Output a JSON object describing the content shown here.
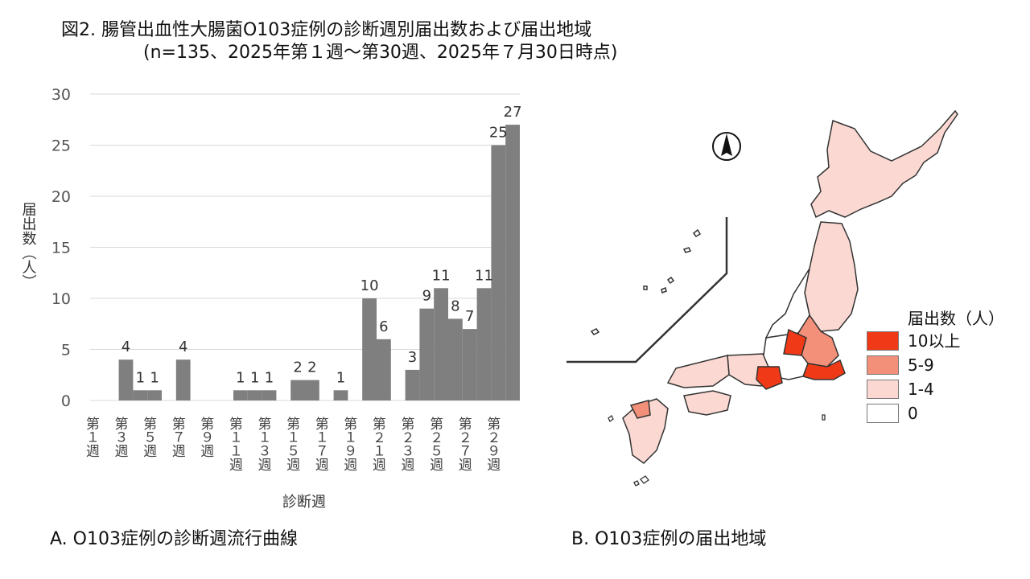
{
  "title": {
    "line1": "図2. 腸管出血性大腸菌O103症例の診断週別届出数および届出地域",
    "line2": "(n=135、2025年第１週～第30週、2025年７月30日時点)"
  },
  "chart_data": {
    "type": "bar",
    "categories": [
      "第１週",
      "第２週",
      "第３週",
      "第４週",
      "第５週",
      "第６週",
      "第７週",
      "第８週",
      "第９週",
      "第10週",
      "第11週",
      "第12週",
      "第13週",
      "第14週",
      "第15週",
      "第16週",
      "第17週",
      "第18週",
      "第19週",
      "第20週",
      "第21週",
      "第22週",
      "第23週",
      "第24週",
      "第25週",
      "第26週",
      "第27週",
      "第28週",
      "第29週",
      "第30週"
    ],
    "values": [
      0,
      0,
      4,
      1,
      1,
      0,
      4,
      0,
      0,
      0,
      1,
      1,
      1,
      0,
      2,
      2,
      0,
      1,
      0,
      10,
      6,
      0,
      3,
      9,
      11,
      8,
      7,
      11,
      25,
      27
    ],
    "tick_labels": [
      "第１週",
      "第３週",
      "第５週",
      "第７週",
      "第９週",
      "第１１週",
      "第１３週",
      "第１５週",
      "第１７週",
      "第１９週",
      "第２１週",
      "第２３週",
      "第２５週",
      "第２７週",
      "第２９週"
    ],
    "ylabel": "届出数（人）",
    "xlabel": "診断週",
    "ylim": [
      0,
      30
    ],
    "yticks": [
      0,
      5,
      10,
      15,
      20,
      25,
      30
    ],
    "bar_color": "#7f7f7f",
    "grid": true
  },
  "captions": {
    "chart": "A. O103症例の診断週流行曲線",
    "map": "B. O103症例の届出地域"
  },
  "map": {
    "legend_title": "届出数（人）",
    "legend": [
      {
        "label": "10以上",
        "color": "#f03a17"
      },
      {
        "label": "5-9",
        "color": "#f3907a"
      },
      {
        "label": "1-4",
        "color": "#fbd9d2"
      },
      {
        "label": "0",
        "color": "#ffffff"
      }
    ],
    "compass": "N"
  }
}
